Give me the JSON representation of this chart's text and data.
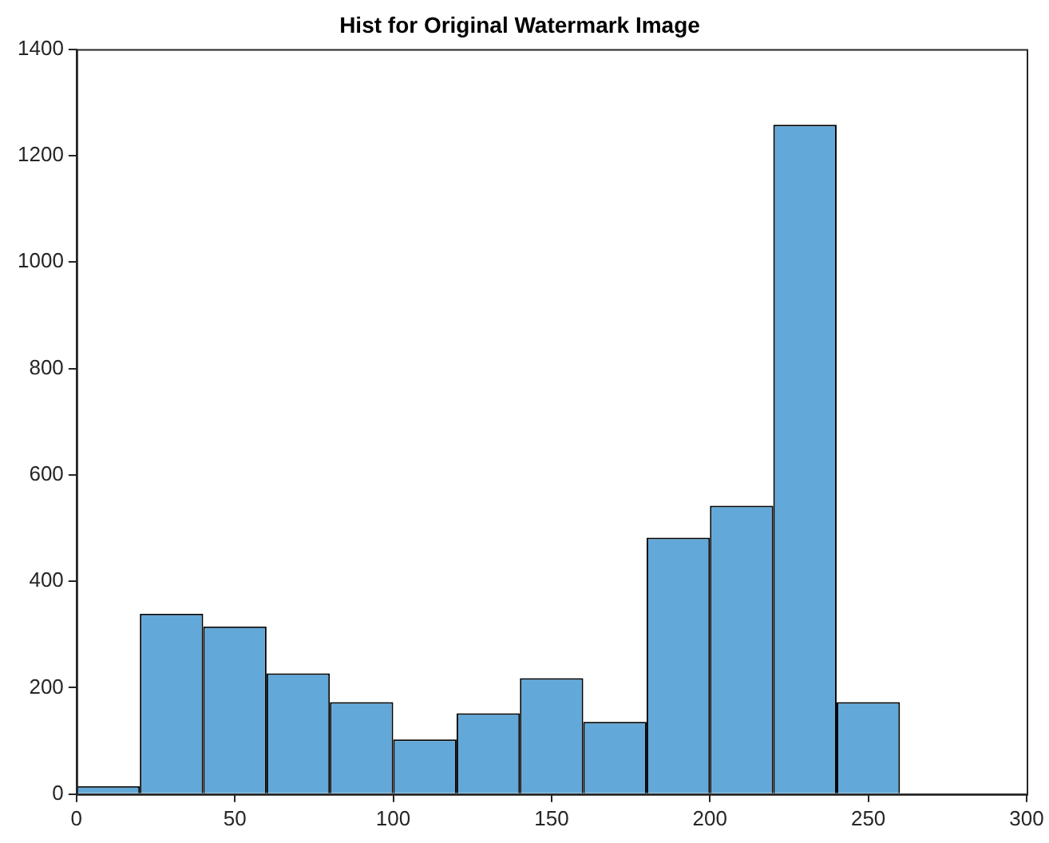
{
  "chart_data": {
    "type": "histogram",
    "title": "Hist for Original Watermark Image",
    "bins": [
      0,
      20,
      40,
      60,
      80,
      100,
      120,
      140,
      160,
      180,
      200,
      220,
      240,
      260
    ],
    "values": [
      15,
      339,
      315,
      227,
      173,
      103,
      152,
      218,
      136,
      482,
      542,
      1258,
      173
    ],
    "color": "#62a8d8",
    "xlim": [
      0,
      300
    ],
    "xticks": [
      0,
      50,
      100,
      150,
      200,
      250,
      300
    ],
    "ylim": [
      0,
      1400
    ],
    "yticks": [
      0,
      200,
      400,
      600,
      800,
      1000,
      1200,
      1400
    ],
    "grid": false,
    "legend": false
  }
}
